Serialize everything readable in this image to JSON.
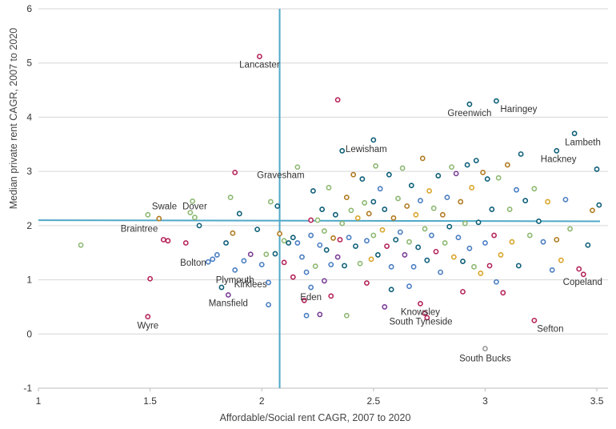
{
  "chart_data": {
    "type": "scatter",
    "xlabel": "Affordable/Social rent CAGR, 2007 to 2020",
    "ylabel": "Median private rent CAGR, 2007 to 2020",
    "xlim": [
      1,
      3.55
    ],
    "ylim": [
      -1,
      6
    ],
    "x_ticks": [
      "1",
      "1.5",
      "2",
      "2.5",
      "3",
      "3.5"
    ],
    "y_ticks": [
      "-1",
      "0",
      "1",
      "2",
      "3",
      "4",
      "5",
      "6"
    ],
    "grid": "horizontal",
    "reference_lines": {
      "vertical_x": 2.08,
      "horizontal_y": [
        2.1,
        2.08
      ]
    },
    "colors": {
      "crimson": "#b5245a",
      "teal": "#0e5f78",
      "blue": "#4a7ec2",
      "green": "#8db872",
      "gold": "#d9a52a",
      "brown": "#b07a20",
      "purple": "#7a3e96",
      "grey": "#9a9a9a",
      "refline": "#4fa8c8"
    },
    "labeled_points": [
      {
        "label": "Lancaster",
        "x": 1.99,
        "y": 5.12,
        "color": "crimson"
      },
      {
        "label": "Greenwich",
        "x": 2.93,
        "y": 4.24,
        "color": "teal"
      },
      {
        "label": "Haringey",
        "x": 3.05,
        "y": 4.3,
        "color": "teal"
      },
      {
        "label": "Lewisham",
        "x": 2.5,
        "y": 3.58,
        "color": "teal"
      },
      {
        "label": "Lambeth",
        "x": 3.4,
        "y": 3.7,
        "color": "teal"
      },
      {
        "label": "Hackney",
        "x": 3.32,
        "y": 3.38,
        "color": "teal"
      },
      {
        "label": "Gravesham",
        "x": 2.16,
        "y": 3.08,
        "color": "green"
      },
      {
        "label": "Swale",
        "x": 1.49,
        "y": 2.2,
        "color": "green"
      },
      {
        "label": "Dover",
        "x": 1.7,
        "y": 2.15,
        "color": "green"
      },
      {
        "label": "Braintree",
        "x": 1.56,
        "y": 1.74,
        "color": "crimson"
      },
      {
        "label": "Bolton",
        "x": 1.78,
        "y": 1.38,
        "color": "blue"
      },
      {
        "label": "Plymouth",
        "x": 1.88,
        "y": 1.18,
        "color": "blue"
      },
      {
        "label": "Kirklees",
        "x": 2.03,
        "y": 0.95,
        "color": "blue"
      },
      {
        "label": "Eden",
        "x": 2.22,
        "y": 0.86,
        "color": "blue"
      },
      {
        "label": "Mansfield",
        "x": 1.85,
        "y": 0.72,
        "color": "purple"
      },
      {
        "label": "Copeland",
        "x": 3.44,
        "y": 1.1,
        "color": "crimson"
      },
      {
        "label": "Knowsley",
        "x": 2.71,
        "y": 0.56,
        "color": "crimson"
      },
      {
        "label": "South Tyneside",
        "x": 2.73,
        "y": 0.38,
        "color": "crimson"
      },
      {
        "label": "Sefton",
        "x": 3.22,
        "y": 0.25,
        "color": "crimson"
      },
      {
        "label": "Wyre",
        "x": 1.49,
        "y": 0.32,
        "color": "crimson"
      },
      {
        "label": "South Bucks",
        "x": 3.0,
        "y": -0.27,
        "color": "grey"
      }
    ],
    "points": [
      [
        1.19,
        1.64,
        "green"
      ],
      [
        1.5,
        1.02,
        "crimson"
      ],
      [
        1.54,
        2.13,
        "brown"
      ],
      [
        1.58,
        1.72,
        "crimson"
      ],
      [
        1.66,
        1.68,
        "crimson"
      ],
      [
        1.68,
        2.24,
        "green"
      ],
      [
        1.69,
        2.45,
        "green"
      ],
      [
        1.72,
        2.0,
        "teal"
      ],
      [
        1.76,
        1.33,
        "blue"
      ],
      [
        1.8,
        1.46,
        "blue"
      ],
      [
        1.82,
        0.86,
        "teal"
      ],
      [
        1.84,
        1.68,
        "teal"
      ],
      [
        1.86,
        2.52,
        "green"
      ],
      [
        1.87,
        1.86,
        "brown"
      ],
      [
        1.88,
        2.98,
        "crimson"
      ],
      [
        1.9,
        2.22,
        "teal"
      ],
      [
        1.92,
        1.35,
        "blue"
      ],
      [
        1.95,
        1.47,
        "purple"
      ],
      [
        1.98,
        1.93,
        "teal"
      ],
      [
        2.0,
        1.28,
        "blue"
      ],
      [
        2.02,
        1.47,
        "green"
      ],
      [
        2.04,
        2.44,
        "green"
      ],
      [
        2.06,
        1.48,
        "teal"
      ],
      [
        2.07,
        2.36,
        "teal"
      ],
      [
        2.08,
        1.85,
        "brown"
      ],
      [
        2.1,
        1.72,
        "green"
      ],
      [
        2.1,
        1.32,
        "crimson"
      ],
      [
        2.12,
        1.68,
        "teal"
      ],
      [
        2.14,
        1.78,
        "teal"
      ],
      [
        2.16,
        1.68,
        "blue"
      ],
      [
        2.18,
        1.42,
        "blue"
      ],
      [
        2.2,
        1.14,
        "blue"
      ],
      [
        2.22,
        2.1,
        "crimson"
      ],
      [
        2.22,
        1.82,
        "blue"
      ],
      [
        2.23,
        2.64,
        "teal"
      ],
      [
        2.24,
        1.25,
        "green"
      ],
      [
        2.25,
        2.1,
        "green"
      ],
      [
        2.26,
        1.64,
        "blue"
      ],
      [
        2.27,
        2.3,
        "teal"
      ],
      [
        2.28,
        1.9,
        "green"
      ],
      [
        2.29,
        1.55,
        "teal"
      ],
      [
        2.3,
        2.7,
        "green"
      ],
      [
        2.31,
        1.28,
        "blue"
      ],
      [
        2.32,
        1.77,
        "brown"
      ],
      [
        2.33,
        2.2,
        "teal"
      ],
      [
        2.34,
        1.42,
        "purple"
      ],
      [
        2.35,
        1.74,
        "crimson"
      ],
      [
        2.36,
        2.04,
        "green"
      ],
      [
        2.37,
        1.26,
        "teal"
      ],
      [
        2.38,
        2.52,
        "brown"
      ],
      [
        2.39,
        1.78,
        "blue"
      ],
      [
        2.4,
        2.28,
        "green"
      ],
      [
        2.41,
        2.94,
        "brown"
      ],
      [
        2.42,
        1.62,
        "teal"
      ],
      [
        2.43,
        2.14,
        "gold"
      ],
      [
        2.44,
        1.3,
        "green"
      ],
      [
        2.45,
        2.86,
        "teal"
      ],
      [
        2.46,
        2.42,
        "green"
      ],
      [
        2.47,
        1.72,
        "blue"
      ],
      [
        2.48,
        2.22,
        "brown"
      ],
      [
        2.49,
        1.38,
        "gold"
      ],
      [
        2.5,
        2.44,
        "teal"
      ],
      [
        2.5,
        1.82,
        "green"
      ],
      [
        2.51,
        3.1,
        "green"
      ],
      [
        2.52,
        1.46,
        "teal"
      ],
      [
        2.53,
        2.68,
        "blue"
      ],
      [
        2.54,
        1.92,
        "gold"
      ],
      [
        2.55,
        2.3,
        "teal"
      ],
      [
        2.56,
        1.62,
        "crimson"
      ],
      [
        2.57,
        2.94,
        "teal"
      ],
      [
        2.58,
        1.24,
        "blue"
      ],
      [
        2.59,
        2.14,
        "brown"
      ],
      [
        2.6,
        1.74,
        "teal"
      ],
      [
        2.61,
        2.5,
        "green"
      ],
      [
        2.62,
        1.88,
        "blue"
      ],
      [
        2.63,
        3.06,
        "green"
      ],
      [
        2.64,
        1.46,
        "purple"
      ],
      [
        2.65,
        2.36,
        "brown"
      ],
      [
        2.66,
        1.7,
        "green"
      ],
      [
        2.67,
        2.74,
        "teal"
      ],
      [
        2.68,
        1.24,
        "blue"
      ],
      [
        2.69,
        2.2,
        "gold"
      ],
      [
        2.7,
        1.6,
        "teal"
      ],
      [
        2.71,
        2.46,
        "blue"
      ],
      [
        2.72,
        3.24,
        "brown"
      ],
      [
        2.73,
        1.94,
        "green"
      ],
      [
        2.74,
        1.36,
        "teal"
      ],
      [
        2.75,
        2.64,
        "gold"
      ],
      [
        2.76,
        1.82,
        "blue"
      ],
      [
        2.77,
        2.32,
        "green"
      ],
      [
        2.78,
        1.52,
        "crimson"
      ],
      [
        2.79,
        2.92,
        "teal"
      ],
      [
        2.8,
        1.14,
        "blue"
      ],
      [
        2.81,
        2.2,
        "brown"
      ],
      [
        2.82,
        1.68,
        "green"
      ],
      [
        2.83,
        2.52,
        "blue"
      ],
      [
        2.84,
        1.98,
        "teal"
      ],
      [
        2.85,
        3.08,
        "green"
      ],
      [
        2.86,
        1.42,
        "gold"
      ],
      [
        2.87,
        2.96,
        "purple"
      ],
      [
        2.88,
        1.78,
        "blue"
      ],
      [
        2.89,
        2.44,
        "brown"
      ],
      [
        2.9,
        1.34,
        "teal"
      ],
      [
        2.91,
        2.04,
        "green"
      ],
      [
        2.92,
        3.12,
        "teal"
      ],
      [
        2.93,
        1.58,
        "blue"
      ],
      [
        2.94,
        2.7,
        "gold"
      ],
      [
        2.95,
        1.24,
        "green"
      ],
      [
        2.96,
        3.2,
        "teal"
      ],
      [
        2.97,
        2.06,
        "teal"
      ],
      [
        2.98,
        1.12,
        "gold"
      ],
      [
        2.99,
        2.98,
        "brown"
      ],
      [
        3.0,
        1.68,
        "blue"
      ],
      [
        3.01,
        2.86,
        "teal"
      ],
      [
        3.02,
        1.26,
        "crimson"
      ],
      [
        3.03,
        2.3,
        "teal"
      ],
      [
        3.04,
        1.82,
        "crimson"
      ],
      [
        3.05,
        0.96,
        "blue"
      ],
      [
        3.06,
        2.88,
        "green"
      ],
      [
        3.07,
        1.46,
        "gold"
      ],
      [
        3.08,
        0.76,
        "crimson"
      ],
      [
        3.1,
        3.12,
        "brown"
      ],
      [
        3.11,
        2.3,
        "green"
      ],
      [
        3.12,
        1.7,
        "gold"
      ],
      [
        3.14,
        2.66,
        "blue"
      ],
      [
        3.15,
        1.26,
        "teal"
      ],
      [
        3.16,
        3.32,
        "teal"
      ],
      [
        3.18,
        2.46,
        "teal"
      ],
      [
        3.2,
        1.82,
        "green"
      ],
      [
        3.22,
        2.68,
        "green"
      ],
      [
        3.24,
        2.08,
        "teal"
      ],
      [
        3.26,
        1.7,
        "blue"
      ],
      [
        3.28,
        2.44,
        "gold"
      ],
      [
        3.3,
        1.18,
        "blue"
      ],
      [
        3.32,
        1.74,
        "brown"
      ],
      [
        3.34,
        1.36,
        "gold"
      ],
      [
        3.36,
        2.48,
        "blue"
      ],
      [
        3.38,
        1.94,
        "green"
      ],
      [
        3.42,
        1.2,
        "crimson"
      ],
      [
        3.46,
        1.64,
        "teal"
      ],
      [
        3.48,
        2.28,
        "brown"
      ],
      [
        3.5,
        3.04,
        "teal"
      ],
      [
        3.51,
        2.38,
        "teal"
      ],
      [
        2.26,
        0.36,
        "purple"
      ],
      [
        2.19,
        0.62,
        "crimson"
      ],
      [
        2.2,
        0.34,
        "blue"
      ],
      [
        2.31,
        0.7,
        "crimson"
      ],
      [
        2.38,
        0.34,
        "green"
      ],
      [
        2.55,
        0.5,
        "purple"
      ],
      [
        2.58,
        0.82,
        "teal"
      ],
      [
        2.66,
        0.88,
        "blue"
      ],
      [
        2.9,
        0.78,
        "crimson"
      ],
      [
        2.47,
        0.94,
        "crimson"
      ],
      [
        2.74,
        0.3,
        "crimson"
      ],
      [
        2.03,
        0.54,
        "blue"
      ],
      [
        2.14,
        1.05,
        "crimson"
      ],
      [
        2.28,
        0.98,
        "purple"
      ],
      [
        2.34,
        4.32,
        "crimson"
      ],
      [
        2.36,
        3.38,
        "teal"
      ]
    ]
  }
}
